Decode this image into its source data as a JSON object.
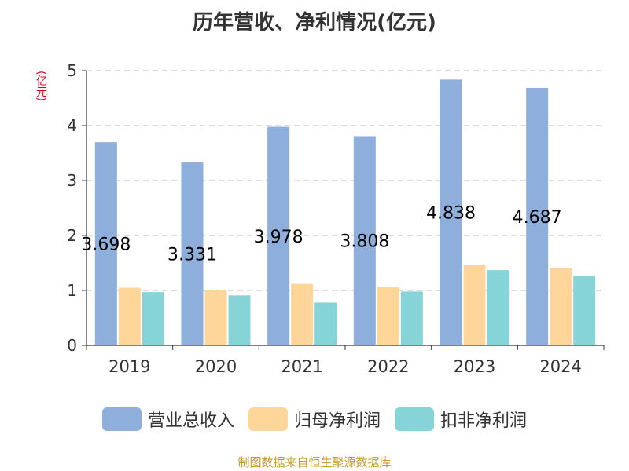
{
  "colors": {
    "revenue": "#8eaedb",
    "net_profit": "#ffd699",
    "deducted_profit": "#87d4d8",
    "unit_text": "#d9001b",
    "source_text": "#c89a28"
  },
  "chart_data": {
    "type": "bar",
    "title": "历年营收、净利情况(亿元)",
    "y_unit": "(亿元)",
    "categories": [
      "2019",
      "2020",
      "2021",
      "2022",
      "2023",
      "2024"
    ],
    "series": [
      {
        "name": "营业总收入",
        "values": [
          3.698,
          3.331,
          3.978,
          3.808,
          4.838,
          4.687
        ],
        "labels": [
          "3.698",
          "3.331",
          "3.978",
          "3.808",
          "4.838",
          "4.687"
        ]
      },
      {
        "name": "归母净利润",
        "values": [
          1.05,
          1.0,
          1.12,
          1.06,
          1.47,
          1.41
        ]
      },
      {
        "name": "扣非净利润",
        "values": [
          0.97,
          0.91,
          0.78,
          0.98,
          1.37,
          1.27
        ]
      }
    ],
    "ylim": [
      0,
      5
    ],
    "yticks": [
      "0",
      "1",
      "2",
      "3",
      "4",
      "5"
    ],
    "grid": true,
    "legend_position": "bottom"
  },
  "source": "制图数据来自恒生聚源数据库"
}
